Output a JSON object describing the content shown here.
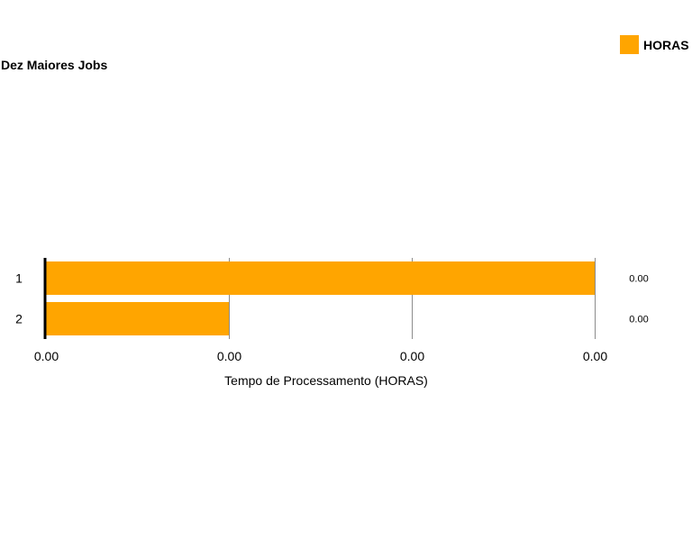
{
  "chart_data": {
    "type": "bar",
    "orientation": "horizontal",
    "title": "Dez Maiores Jobs",
    "xlabel": "Tempo de Processamento (HORAS)",
    "ylabel": "",
    "categories": [
      "1",
      "2"
    ],
    "series": [
      {
        "name": "HORAS",
        "color": "#FFA500",
        "values": [
          0.003,
          0.001
        ],
        "value_labels": [
          "0.00",
          "0.00"
        ]
      }
    ],
    "x_ticks": [
      "0.00",
      "0.00",
      "0.00",
      "0.00"
    ],
    "x_tick_values": [
      0,
      0.001,
      0.002,
      0.003
    ],
    "xlim": [
      0,
      0.003
    ],
    "grid": true,
    "legend_position": "top-right"
  }
}
